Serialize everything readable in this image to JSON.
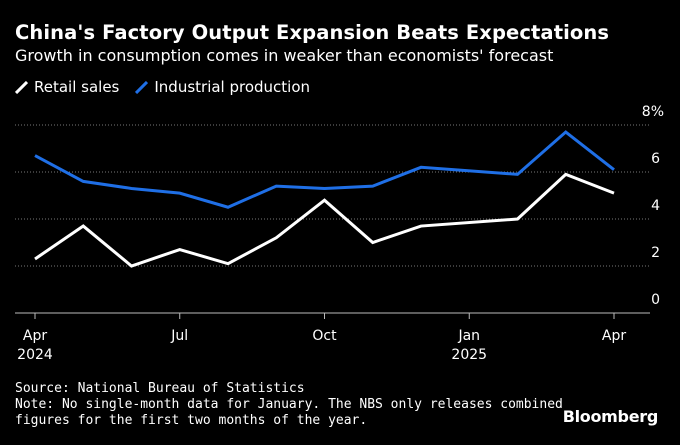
{
  "header": {
    "title": "China's Factory Output Expansion Beats Expectations",
    "subtitle": "Growth in consumption comes in weaker than economists' forecast"
  },
  "legend": [
    {
      "label": "Retail sales",
      "color": "#ffffff"
    },
    {
      "label": "Industrial production",
      "color": "#1f6fe6"
    }
  ],
  "chart_data": {
    "type": "line",
    "title": "China's Factory Output Expansion Beats Expectations",
    "subtitle": "Growth in consumption comes in weaker than economists' forecast",
    "xlabel": "",
    "ylabel": "",
    "ylim": [
      0,
      8
    ],
    "y_ticks": [
      0,
      2,
      4,
      6
    ],
    "y_top_label": "8%",
    "x_ticks": [
      {
        "label": "Apr",
        "sublabel": "2024",
        "month_index": 0
      },
      {
        "label": "Jul",
        "sublabel": "",
        "month_index": 3
      },
      {
        "label": "Oct",
        "sublabel": "",
        "month_index": 6
      },
      {
        "label": "Jan",
        "sublabel": "2025",
        "month_index": 9
      },
      {
        "label": "Apr",
        "sublabel": "",
        "month_index": 12
      }
    ],
    "x": [
      "2024-04",
      "2024-05",
      "2024-06",
      "2024-07",
      "2024-08",
      "2024-09",
      "2024-10",
      "2024-11",
      "2024-12",
      "2025-02",
      "2025-03",
      "2025-04"
    ],
    "month_index": [
      0,
      1,
      2,
      3,
      4,
      5,
      6,
      7,
      8,
      10,
      11,
      12
    ],
    "grid": true,
    "series": [
      {
        "name": "Retail sales",
        "color": "#ffffff",
        "values": [
          2.3,
          3.7,
          2.0,
          2.7,
          2.1,
          3.2,
          4.8,
          3.0,
          3.7,
          4.0,
          5.9,
          5.1
        ]
      },
      {
        "name": "Industrial production",
        "color": "#1f6fe6",
        "values": [
          6.7,
          5.6,
          5.3,
          5.1,
          4.5,
          5.4,
          5.3,
          5.4,
          6.2,
          5.9,
          7.7,
          6.1
        ]
      }
    ]
  },
  "footer": {
    "source": "Source: National Bureau of Statistics",
    "note_line1": "Note: No single-month data for January. The NBS only releases combined",
    "note_line2": "figures for the first two months of the year."
  },
  "brand": "Bloomberg"
}
